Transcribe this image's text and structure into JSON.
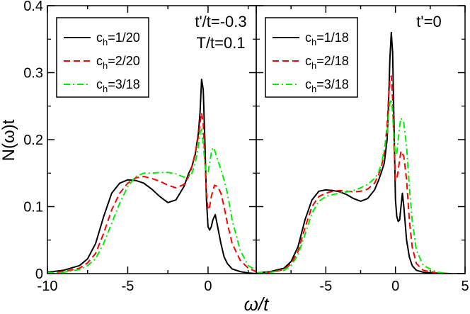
{
  "chart_data": {
    "type": "line",
    "xlabel": "ω/t",
    "ylabel": "N(ω)t",
    "ylim": [
      0,
      0.4
    ],
    "yticks": [
      0,
      0.1,
      0.2,
      0.3,
      0.4
    ],
    "ytick_labels": [
      "0",
      "0.1",
      "0.2",
      "0.3",
      "0.4"
    ],
    "colors": {
      "black": "#000000",
      "red": "#ff0000",
      "green": "#00ee00"
    },
    "panels": [
      {
        "id": "left",
        "annotation": [
          "t'/t=-0.3",
          "T/t=0.1"
        ],
        "xlim": [
          -10,
          3.0
        ],
        "xticks": [
          -10,
          -5,
          0
        ],
        "xtick_labels": [
          "-10",
          "-5",
          "0"
        ],
        "legend_position": "top-left",
        "series": [
          {
            "name": "c_h=1/20",
            "label_main": "c",
            "label_sub": "h",
            "label_rest": "=1/20",
            "color": "#000000",
            "dash": "solid",
            "x": [
              -10,
              -9,
              -8,
              -7.5,
              -7,
              -6.5,
              -6,
              -5.5,
              -5,
              -4.5,
              -4,
              -3.5,
              -3,
              -2.5,
              -2,
              -1.5,
              -1.2,
              -1,
              -0.8,
              -0.6,
              -0.5,
              -0.4,
              -0.3,
              -0.2,
              -0.1,
              0,
              0.1,
              0.2,
              0.3,
              0.45,
              0.6,
              0.8,
              1,
              1.2,
              1.5,
              2,
              2.5,
              3
            ],
            "y": [
              0.002,
              0.005,
              0.012,
              0.022,
              0.045,
              0.085,
              0.12,
              0.135,
              0.14,
              0.139,
              0.135,
              0.126,
              0.115,
              0.106,
              0.11,
              0.13,
              0.15,
              0.16,
              0.178,
              0.21,
              0.24,
              0.29,
              0.275,
              0.2,
              0.11,
              0.07,
              0.065,
              0.07,
              0.08,
              0.088,
              0.07,
              0.045,
              0.025,
              0.015,
              0.007,
              0.003,
              0.001,
              0.0
            ]
          },
          {
            "name": "c_h=2/20",
            "label_main": "c",
            "label_sub": "h",
            "label_rest": "=2/20",
            "color": "#ff0000",
            "dash": "dashed",
            "x": [
              -10,
              -9,
              -8,
              -7.5,
              -7,
              -6.5,
              -6,
              -5.5,
              -5,
              -4.5,
              -4,
              -3.5,
              -3,
              -2.5,
              -2,
              -1.5,
              -1.2,
              -1,
              -0.8,
              -0.6,
              -0.5,
              -0.4,
              -0.3,
              -0.2,
              -0.1,
              0,
              0.1,
              0.2,
              0.4,
              0.6,
              0.8,
              1,
              1.2,
              1.5,
              2,
              2.5,
              3
            ],
            "y": [
              0.001,
              0.003,
              0.008,
              0.016,
              0.03,
              0.06,
              0.095,
              0.12,
              0.135,
              0.143,
              0.145,
              0.142,
              0.138,
              0.132,
              0.128,
              0.133,
              0.145,
              0.16,
              0.18,
              0.205,
              0.225,
              0.24,
              0.225,
              0.17,
              0.12,
              0.095,
              0.1,
              0.115,
              0.132,
              0.13,
              0.12,
              0.1,
              0.075,
              0.045,
              0.02,
              0.008,
              0.003
            ]
          },
          {
            "name": "c_h=3/18",
            "label_main": "c",
            "label_sub": "h",
            "label_rest": "=3/18",
            "color": "#00ee00",
            "dash": "dashdot",
            "x": [
              -10,
              -9,
              -8,
              -7.5,
              -7,
              -6.5,
              -6,
              -5.5,
              -5,
              -4.5,
              -4,
              -3.5,
              -3,
              -2.5,
              -2,
              -1.5,
              -1.2,
              -1,
              -0.8,
              -0.6,
              -0.5,
              -0.4,
              -0.3,
              -0.2,
              -0.1,
              0,
              0.1,
              0.2,
              0.3,
              0.4,
              0.6,
              0.8,
              1,
              1.2,
              1.5,
              2,
              2.5,
              3
            ],
            "y": [
              0.001,
              0.002,
              0.006,
              0.012,
              0.022,
              0.045,
              0.075,
              0.105,
              0.13,
              0.145,
              0.15,
              0.15,
              0.151,
              0.151,
              0.149,
              0.144,
              0.145,
              0.15,
              0.165,
              0.19,
              0.21,
              0.215,
              0.195,
              0.165,
              0.148,
              0.15,
              0.165,
              0.18,
              0.188,
              0.185,
              0.17,
              0.155,
              0.14,
              0.12,
              0.08,
              0.035,
              0.012,
              0.005
            ]
          }
        ]
      },
      {
        "id": "right",
        "annotation": [
          "t'=0"
        ],
        "xlim": [
          -10,
          5
        ],
        "xticks": [
          -5,
          0,
          5
        ],
        "xtick_labels": [
          "-5",
          "0",
          "5"
        ],
        "legend_position": "top-left",
        "series": [
          {
            "name": "c_h=1/18",
            "label_main": "c",
            "label_sub": "h",
            "label_rest": "=1/18",
            "color": "#000000",
            "dash": "solid",
            "x": [
              -10,
              -9,
              -8,
              -7.5,
              -7,
              -6.5,
              -6,
              -5.5,
              -5,
              -4.5,
              -4,
              -3.5,
              -3,
              -2.5,
              -2,
              -1.5,
              -1.2,
              -1,
              -0.8,
              -0.6,
              -0.5,
              -0.4,
              -0.3,
              -0.2,
              -0.1,
              0,
              0.1,
              0.2,
              0.3,
              0.4,
              0.5,
              0.6,
              0.8,
              1,
              1.2,
              1.5,
              2,
              3,
              4,
              5
            ],
            "y": [
              0.001,
              0.003,
              0.008,
              0.018,
              0.04,
              0.08,
              0.11,
              0.123,
              0.125,
              0.124,
              0.122,
              0.118,
              0.112,
              0.108,
              0.112,
              0.125,
              0.14,
              0.152,
              0.165,
              0.2,
              0.25,
              0.32,
              0.36,
              0.33,
              0.22,
              0.11,
              0.085,
              0.078,
              0.08,
              0.1,
              0.12,
              0.1,
              0.05,
              0.025,
              0.012,
              0.005,
              0.002,
              0.0,
              0.0,
              0.0
            ]
          },
          {
            "name": "c_h=2/18",
            "label_main": "c",
            "label_sub": "h",
            "label_rest": "=2/18",
            "color": "#ff0000",
            "dash": "dashed",
            "x": [
              -10,
              -9,
              -8,
              -7.5,
              -7,
              -6.5,
              -6,
              -5.5,
              -5,
              -4.5,
              -4,
              -3.5,
              -3,
              -2.5,
              -2,
              -1.5,
              -1.2,
              -1,
              -0.8,
              -0.6,
              -0.5,
              -0.4,
              -0.3,
              -0.2,
              -0.1,
              0,
              0.1,
              0.2,
              0.4,
              0.6,
              0.8,
              1,
              1.2,
              1.5,
              2,
              3,
              4,
              5
            ],
            "y": [
              0.001,
              0.002,
              0.006,
              0.015,
              0.033,
              0.068,
              0.1,
              0.115,
              0.12,
              0.123,
              0.124,
              0.123,
              0.122,
              0.123,
              0.126,
              0.135,
              0.148,
              0.16,
              0.18,
              0.22,
              0.26,
              0.29,
              0.295,
              0.26,
              0.19,
              0.14,
              0.14,
              0.155,
              0.183,
              0.175,
              0.14,
              0.08,
              0.04,
              0.015,
              0.005,
              0.001,
              0.0,
              0.0
            ]
          },
          {
            "name": "c_h=3/18",
            "label_main": "c",
            "label_sub": "h",
            "label_rest": "=3/18",
            "color": "#00ee00",
            "dash": "dashdot",
            "x": [
              -10,
              -9,
              -8,
              -7.5,
              -7,
              -6.5,
              -6,
              -5.5,
              -5,
              -4.5,
              -4,
              -3.5,
              -3,
              -2.5,
              -2,
              -1.5,
              -1.2,
              -1,
              -0.8,
              -0.6,
              -0.5,
              -0.4,
              -0.3,
              -0.2,
              -0.1,
              0,
              0.1,
              0.2,
              0.3,
              0.4,
              0.6,
              0.8,
              1,
              1.2,
              1.5,
              2,
              3,
              4,
              5
            ],
            "y": [
              0.001,
              0.002,
              0.005,
              0.012,
              0.028,
              0.058,
              0.09,
              0.108,
              0.115,
              0.118,
              0.12,
              0.122,
              0.124,
              0.128,
              0.133,
              0.142,
              0.152,
              0.165,
              0.185,
              0.21,
              0.235,
              0.255,
              0.26,
              0.24,
              0.2,
              0.175,
              0.18,
              0.2,
              0.22,
              0.232,
              0.225,
              0.19,
              0.13,
              0.08,
              0.035,
              0.012,
              0.002,
              0.0,
              0.0
            ]
          }
        ]
      }
    ]
  }
}
